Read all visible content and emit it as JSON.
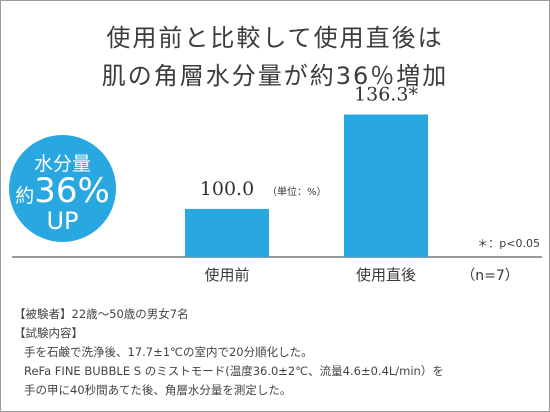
{
  "header": {
    "title_line1": "使用前と比較して使用直後は",
    "title_line2": "肌の角層水分量が約36％増加"
  },
  "badge": {
    "line1": "水分量",
    "line2_prefix": "約",
    "line2_value": "36%",
    "line3": "UP"
  },
  "chart_data": {
    "type": "bar",
    "categories": [
      "使用前",
      "使用直後"
    ],
    "values": [
      100.0,
      136.3
    ],
    "value_labels": [
      "100.0",
      "136.3*"
    ],
    "unit_note": "（単位：%）",
    "significance_note": "＊：p<0.05",
    "sample_note": "（n=7）",
    "colors": {
      "bar": "#29a7e1",
      "axis": "#333333"
    },
    "grid": false
  },
  "footnotes": {
    "subjects": "【被験者】22歳〜50歳の男女7名",
    "method_heading": "【試験内容】",
    "method_lines": [
      "手を石鹸で洗浄後、17.7±1℃の室内で20分順化した。",
      "ReFa FINE BUBBLE S のミストモード(温度36.0±2℃、流量4.6±0.4L/min）を",
      "手の甲に40秒間あてた後、角層水分量を測定した。"
    ]
  }
}
